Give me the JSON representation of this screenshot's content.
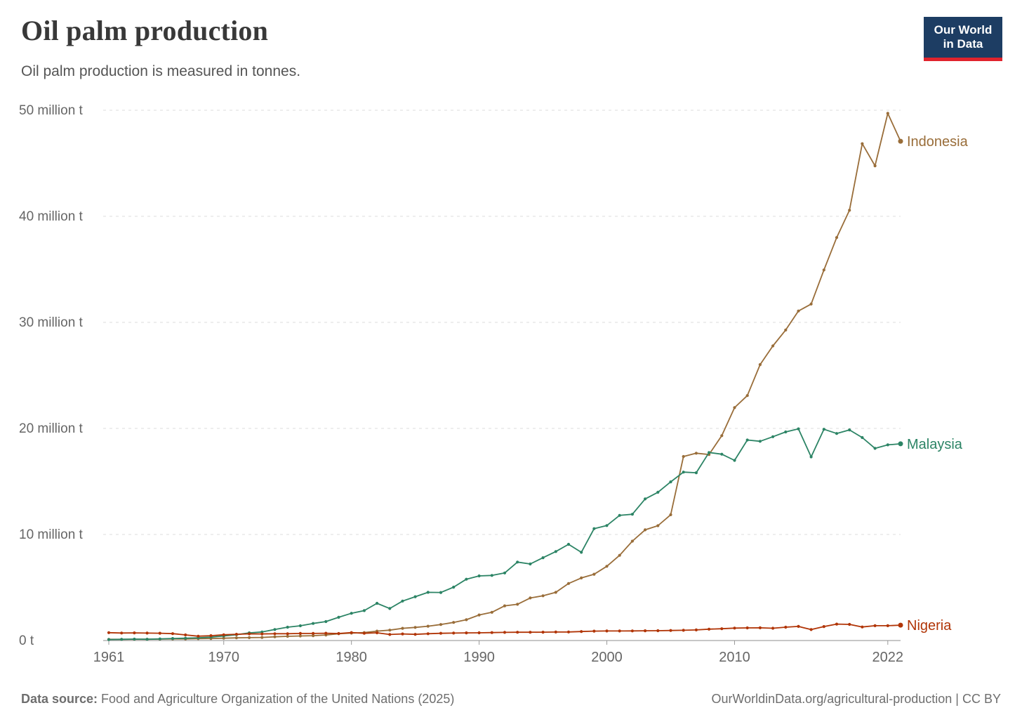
{
  "header": {
    "title": "Oil palm production",
    "subtitle": "Oil palm production is measured in tonnes.",
    "logo": {
      "line1": "Our World",
      "line2": "in Data",
      "bg_color": "#1d3d63",
      "accent_color": "#e0232d"
    }
  },
  "footer": {
    "source_label": "Data source:",
    "source_text": " Food and Agriculture Organization of the United Nations (2025)",
    "rights": "OurWorldinData.org/agricultural-production | CC BY"
  },
  "chart_data": {
    "type": "line",
    "title": "Oil palm production",
    "subtitle": "Oil palm production is measured in tonnes.",
    "unit": "tonnes",
    "values_unit": "million tonnes",
    "grid": true,
    "legend_position": "end-of-line labels",
    "ylim": [
      0,
      50
    ],
    "yticks": [
      {
        "value": 0,
        "label": "0 t"
      },
      {
        "value": 10,
        "label": "10 million t"
      },
      {
        "value": 20,
        "label": "20 million t"
      },
      {
        "value": 30,
        "label": "30 million t"
      },
      {
        "value": 40,
        "label": "40 million t"
      },
      {
        "value": 50,
        "label": "50 million t"
      }
    ],
    "xticks": [
      1961,
      1970,
      1980,
      1990,
      2000,
      2010,
      2022
    ],
    "x": [
      1961,
      1962,
      1963,
      1964,
      1965,
      1966,
      1967,
      1968,
      1969,
      1970,
      1971,
      1972,
      1973,
      1974,
      1975,
      1976,
      1977,
      1978,
      1979,
      1980,
      1981,
      1982,
      1983,
      1984,
      1985,
      1986,
      1987,
      1988,
      1989,
      1990,
      1991,
      1992,
      1993,
      1994,
      1995,
      1996,
      1997,
      1998,
      1999,
      2000,
      2001,
      2002,
      2003,
      2004,
      2005,
      2006,
      2007,
      2008,
      2009,
      2010,
      2011,
      2012,
      2013,
      2014,
      2015,
      2016,
      2017,
      2018,
      2019,
      2020,
      2021,
      2022,
      2023
    ],
    "series": [
      {
        "name": "Indonesia",
        "color": "#996D39",
        "values": [
          0.11,
          0.11,
          0.12,
          0.12,
          0.13,
          0.15,
          0.15,
          0.18,
          0.19,
          0.22,
          0.25,
          0.27,
          0.29,
          0.35,
          0.4,
          0.43,
          0.46,
          0.52,
          0.64,
          0.7,
          0.75,
          0.89,
          0.98,
          1.15,
          1.24,
          1.35,
          1.51,
          1.71,
          1.96,
          2.41,
          2.66,
          3.27,
          3.42,
          4.01,
          4.22,
          4.54,
          5.38,
          5.9,
          6.25,
          7.0,
          8.03,
          9.37,
          10.44,
          10.83,
          11.86,
          17.35,
          17.66,
          17.54,
          19.32,
          21.96,
          23.1,
          26.02,
          27.78,
          29.28,
          31.07,
          31.73,
          34.94,
          38.0,
          40.57,
          46.85,
          44.76,
          49.71,
          47.08
        ]
      },
      {
        "name": "Malaysia",
        "color": "#2C8465",
        "values": [
          0.09,
          0.11,
          0.13,
          0.12,
          0.15,
          0.19,
          0.22,
          0.26,
          0.32,
          0.43,
          0.55,
          0.72,
          0.81,
          1.04,
          1.26,
          1.39,
          1.61,
          1.79,
          2.19,
          2.57,
          2.82,
          3.51,
          3.02,
          3.72,
          4.13,
          4.54,
          4.53,
          5.03,
          5.78,
          6.09,
          6.14,
          6.37,
          7.4,
          7.22,
          7.81,
          8.39,
          9.07,
          8.32,
          10.55,
          10.84,
          11.8,
          11.91,
          13.35,
          13.98,
          14.96,
          15.88,
          15.82,
          17.73,
          17.57,
          16.99,
          18.91,
          18.79,
          19.22,
          19.67,
          19.96,
          17.32,
          19.92,
          19.52,
          19.86,
          19.14,
          18.12,
          18.45,
          18.55
        ]
      },
      {
        "name": "Nigeria",
        "color": "#B13507",
        "values": [
          0.74,
          0.71,
          0.72,
          0.7,
          0.69,
          0.65,
          0.53,
          0.41,
          0.46,
          0.54,
          0.59,
          0.63,
          0.62,
          0.64,
          0.64,
          0.67,
          0.67,
          0.69,
          0.66,
          0.75,
          0.68,
          0.73,
          0.57,
          0.62,
          0.58,
          0.64,
          0.68,
          0.7,
          0.72,
          0.73,
          0.75,
          0.77,
          0.78,
          0.78,
          0.79,
          0.8,
          0.81,
          0.85,
          0.89,
          0.9,
          0.9,
          0.91,
          0.92,
          0.93,
          0.95,
          0.97,
          1.0,
          1.07,
          1.11,
          1.17,
          1.19,
          1.2,
          1.16,
          1.26,
          1.33,
          1.03,
          1.32,
          1.55,
          1.52,
          1.28,
          1.4,
          1.4,
          1.45
        ]
      }
    ]
  }
}
